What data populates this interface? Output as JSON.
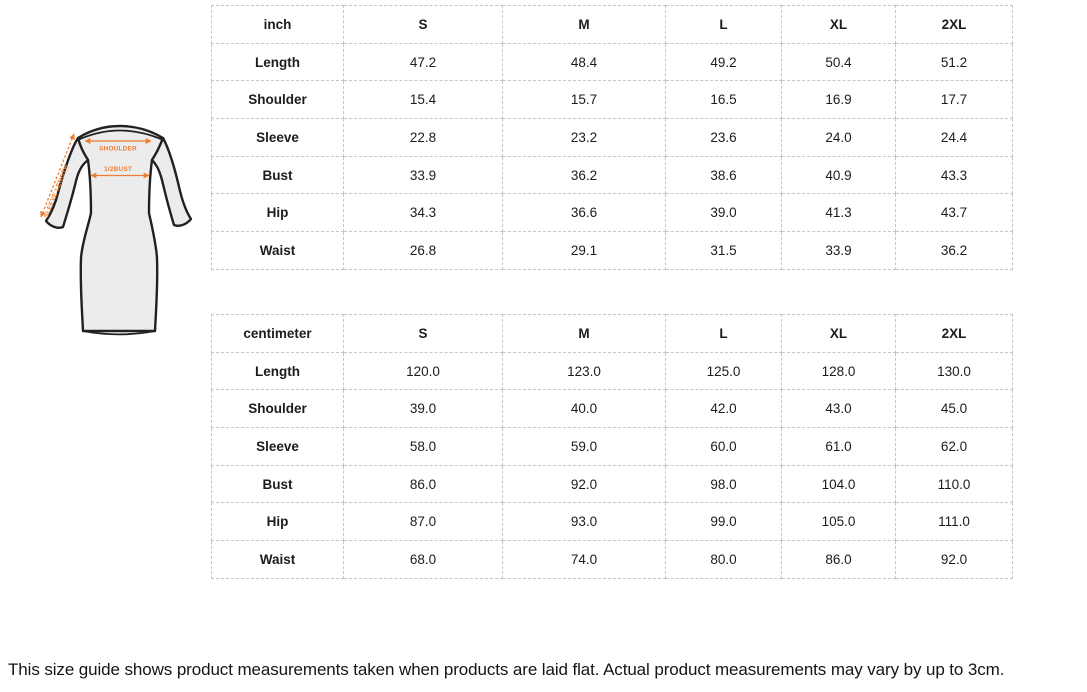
{
  "diagram": {
    "accent_color": "#ef7d33",
    "labels": {
      "shoulder": "SHOULDER",
      "bust": "1/2BUST",
      "sleeve_length": "SLEEVE LENGTH"
    }
  },
  "tables": [
    {
      "unit_label": "inch",
      "columns": [
        "S",
        "M",
        "L",
        "XL",
        "2XL"
      ],
      "rows": [
        {
          "label": "Length",
          "values": [
            "47.2",
            "48.4",
            "49.2",
            "50.4",
            "51.2"
          ]
        },
        {
          "label": "Shoulder",
          "values": [
            "15.4",
            "15.7",
            "16.5",
            "16.9",
            "17.7"
          ]
        },
        {
          "label": "Sleeve",
          "values": [
            "22.8",
            "23.2",
            "23.6",
            "24.0",
            "24.4"
          ]
        },
        {
          "label": "Bust",
          "values": [
            "33.9",
            "36.2",
            "38.6",
            "40.9",
            "43.3"
          ]
        },
        {
          "label": "Hip",
          "values": [
            "34.3",
            "36.6",
            "39.0",
            "41.3",
            "43.7"
          ]
        },
        {
          "label": "Waist",
          "values": [
            "26.8",
            "29.1",
            "31.5",
            "33.9",
            "36.2"
          ]
        }
      ]
    },
    {
      "unit_label": "centimeter",
      "columns": [
        "S",
        "M",
        "L",
        "XL",
        "2XL"
      ],
      "rows": [
        {
          "label": "Length",
          "values": [
            "120.0",
            "123.0",
            "125.0",
            "128.0",
            "130.0"
          ]
        },
        {
          "label": "Shoulder",
          "values": [
            "39.0",
            "40.0",
            "42.0",
            "43.0",
            "45.0"
          ]
        },
        {
          "label": "Sleeve",
          "values": [
            "58.0",
            "59.0",
            "60.0",
            "61.0",
            "62.0"
          ]
        },
        {
          "label": "Bust",
          "values": [
            "86.0",
            "92.0",
            "98.0",
            "104.0",
            "110.0"
          ]
        },
        {
          "label": "Hip",
          "values": [
            "87.0",
            "93.0",
            "99.0",
            "105.0",
            "111.0"
          ]
        },
        {
          "label": "Waist",
          "values": [
            "68.0",
            "74.0",
            "80.0",
            "86.0",
            "92.0"
          ]
        }
      ]
    }
  ],
  "footer": {
    "note": "This size guide shows product measurements taken when products are laid flat. Actual product measurements may vary by up to 3cm."
  }
}
